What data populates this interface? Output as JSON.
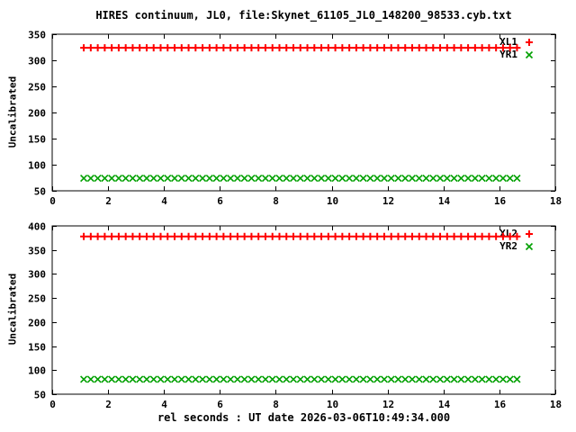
{
  "title": "HIRES continuum, JL0, file:Skynet_61105_JL0_148200_98533.cyb.txt",
  "xlabel": "rel seconds : UT date 2026-03-06T10:49:34.000",
  "colors": {
    "series_red": "#ff0000",
    "series_green": "#00a000",
    "axis": "#000000",
    "background": "#ffffff"
  },
  "chart_data": [
    {
      "type": "scatter",
      "panel": "top",
      "ylabel": "Uncalibrated",
      "xlim": [
        0,
        18
      ],
      "ylim": [
        50,
        350
      ],
      "xticks": [
        0,
        2,
        4,
        6,
        8,
        10,
        12,
        14,
        16,
        18
      ],
      "yticks": [
        50,
        100,
        150,
        200,
        250,
        300,
        350
      ],
      "grid": false,
      "legend_position": "top-right-inside",
      "x": {
        "start": 1.13,
        "step": 0.25,
        "count": 63
      },
      "points_note": "63 evenly spaced points per series, constant y value",
      "series": [
        {
          "name": "XL1",
          "marker": "plus",
          "color": "#ff0000",
          "y_constant": 324
        },
        {
          "name": "YR1",
          "marker": "cross",
          "color": "#00a000",
          "y_constant": 74
        }
      ]
    },
    {
      "type": "scatter",
      "panel": "bottom",
      "ylabel": "Uncalibrated",
      "xlim": [
        0,
        18
      ],
      "ylim": [
        50,
        400
      ],
      "xticks": [
        0,
        2,
        4,
        6,
        8,
        10,
        12,
        14,
        16,
        18
      ],
      "yticks": [
        50,
        100,
        150,
        200,
        250,
        300,
        350,
        400
      ],
      "grid": false,
      "legend_position": "top-right-inside",
      "x": {
        "start": 1.13,
        "step": 0.25,
        "count": 63
      },
      "points_note": "63 evenly spaced points per series, constant y value",
      "series": [
        {
          "name": "XL2",
          "marker": "plus",
          "color": "#ff0000",
          "y_constant": 378
        },
        {
          "name": "YR2",
          "marker": "cross",
          "color": "#00a000",
          "y_constant": 81
        }
      ]
    }
  ]
}
